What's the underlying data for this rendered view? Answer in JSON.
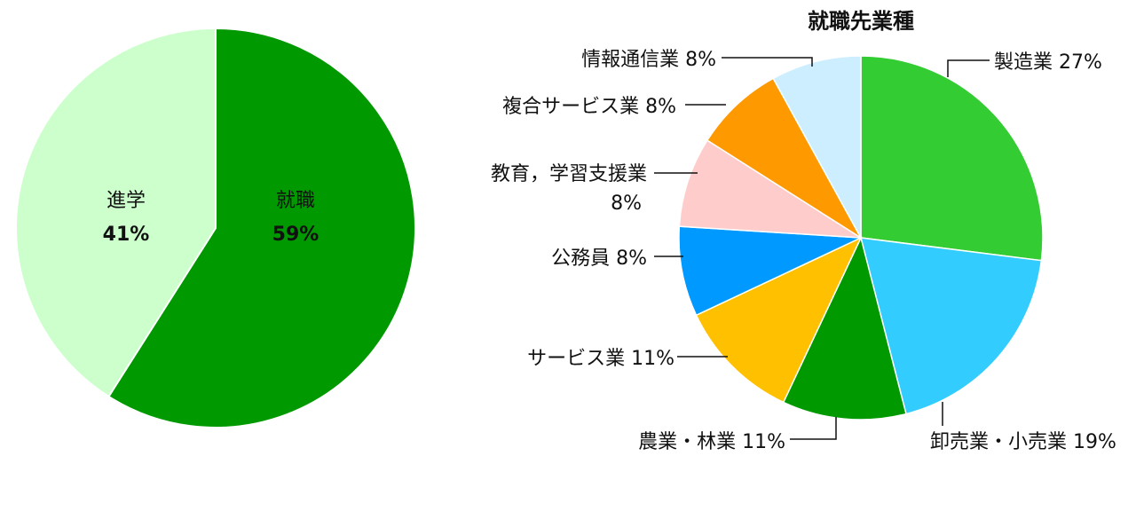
{
  "chart_data": [
    {
      "type": "pie",
      "title": "",
      "slices": [
        {
          "label": "就職",
          "value": 59,
          "pct_text": "59%",
          "color": "#009900",
          "text_color": "#ffffff"
        },
        {
          "label": "進学",
          "value": 41,
          "pct_text": "41%",
          "color": "#ccffcc",
          "text_color": "#000000"
        }
      ]
    },
    {
      "type": "pie",
      "title": "就職先業種",
      "slices": [
        {
          "label": "製造業 27%",
          "value": 27,
          "color": "#33cc33"
        },
        {
          "label": "卸売業・小売業 19%",
          "value": 19,
          "color": "#33ccff"
        },
        {
          "label": "農業・林業 11%",
          "value": 11,
          "color": "#009900"
        },
        {
          "label": "サービス業 11%",
          "value": 11,
          "color": "#ffc000"
        },
        {
          "label": "公務員 8%",
          "value": 8,
          "color": "#0099ff"
        },
        {
          "label": "教育，学習支援業",
          "label2": "8%",
          "value": 8,
          "color": "#ffcccc"
        },
        {
          "label": "複合サービス業 8%",
          "value": 8,
          "color": "#ff9900"
        },
        {
          "label": "情報通信業 8%",
          "value": 8,
          "color": "#cceeff"
        }
      ]
    }
  ]
}
